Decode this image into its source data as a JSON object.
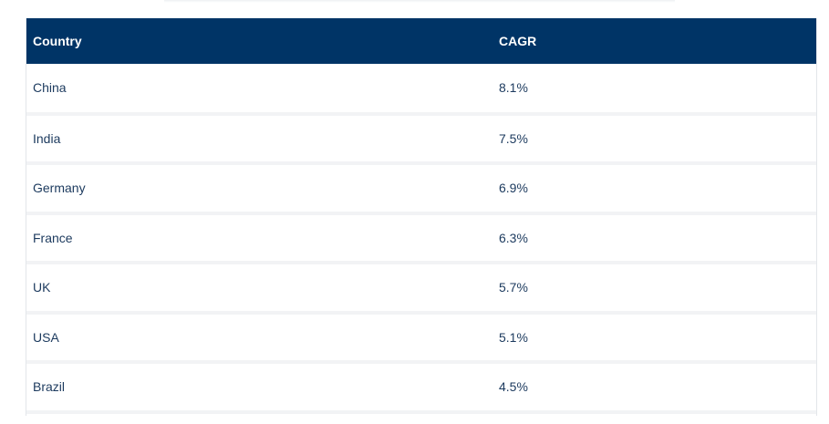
{
  "table": {
    "headers": {
      "country": "Country",
      "cagr": "CAGR"
    },
    "rows": [
      {
        "country": "China",
        "cagr": "8.1%"
      },
      {
        "country": "India",
        "cagr": "7.5%"
      },
      {
        "country": "Germany",
        "cagr": "6.9%"
      },
      {
        "country": "France",
        "cagr": "6.3%"
      },
      {
        "country": "UK",
        "cagr": "5.7%"
      },
      {
        "country": "USA",
        "cagr": "5.1%"
      },
      {
        "country": "Brazil",
        "cagr": "4.5%"
      }
    ]
  }
}
